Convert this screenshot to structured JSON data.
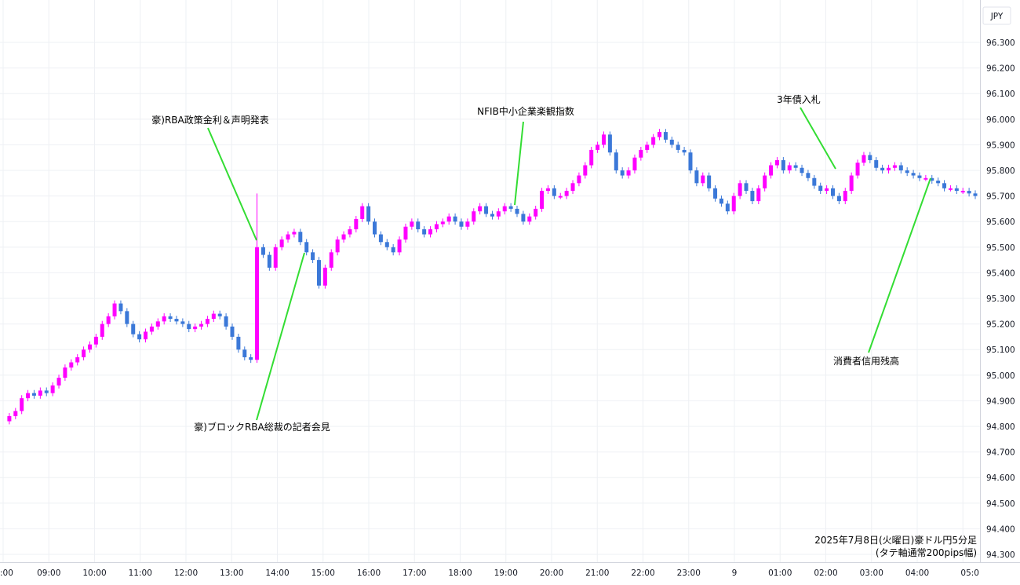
{
  "currency_label": "JPY",
  "chart_data": {
    "type": "candlestick",
    "caption_line1": "2025年7月8日(火曜日)豪ドル円5分足",
    "caption_line2": "(タテ軸通常200pips幅)",
    "y_ticks": [
      "96.300",
      "96.200",
      "96.100",
      "96.000",
      "95.900",
      "95.800",
      "95.700",
      "95.600",
      "95.500",
      "95.400",
      "95.300",
      "95.200",
      "95.100",
      "95.000",
      "94.900",
      "94.800",
      "94.700",
      "94.600",
      "94.500",
      "94.400",
      "94.300"
    ],
    "x_ticks": [
      ":00",
      "09:00",
      "10:00",
      "11:00",
      "12:00",
      "13:00",
      "14:00",
      "15:00",
      "16:00",
      "17:00",
      "18:00",
      "19:00",
      "20:00",
      "21:00",
      "22:00",
      "23:00",
      "9",
      "01:00",
      "02:00",
      "03:00",
      "04:00",
      "05:0"
    ],
    "ylim": [
      94.28,
      96.36
    ],
    "up_color": "#ff00ff",
    "down_color": "#3b78d8",
    "annotation_line_color": "#33dd33",
    "annotations": [
      {
        "text": "豪)RBA政策金利＆声明発表"
      },
      {
        "text": "豪)ブロックRBA総裁の記者会見"
      },
      {
        "text": "NFIB中小企業楽観指数"
      },
      {
        "text": "3年債入札"
      },
      {
        "text": "消費者信用残高"
      }
    ],
    "price_path": [
      94.82,
      94.84,
      94.86,
      94.91,
      94.93,
      94.92,
      94.94,
      94.93,
      94.96,
      94.99,
      95.03,
      95.05,
      95.07,
      95.1,
      95.12,
      95.15,
      95.2,
      95.23,
      95.28,
      95.25,
      95.2,
      95.16,
      95.14,
      95.17,
      95.19,
      95.21,
      95.23,
      95.22,
      95.21,
      95.2,
      95.18,
      95.19,
      95.2,
      95.22,
      95.24,
      95.23,
      95.19,
      95.15,
      95.1,
      95.07,
      95.06,
      95.5,
      95.47,
      95.42,
      95.5,
      95.53,
      95.55,
      95.56,
      95.52,
      95.48,
      95.45,
      95.35,
      95.42,
      95.48,
      95.53,
      95.55,
      95.57,
      95.61,
      95.66,
      95.6,
      95.55,
      95.52,
      95.5,
      95.48,
      95.53,
      95.58,
      95.6,
      95.57,
      95.55,
      95.57,
      95.59,
      95.6,
      95.62,
      95.6,
      95.58,
      95.6,
      95.64,
      95.66,
      95.63,
      95.62,
      95.64,
      95.66,
      95.65,
      95.63,
      95.6,
      95.62,
      95.65,
      95.72,
      95.73,
      95.7,
      95.7,
      95.72,
      95.75,
      95.78,
      95.82,
      95.88,
      95.9,
      95.94,
      95.87,
      95.8,
      95.78,
      95.8,
      95.85,
      95.88,
      95.9,
      95.93,
      95.95,
      95.92,
      95.9,
      95.88,
      95.87,
      95.8,
      95.75,
      95.78,
      95.73,
      95.69,
      95.67,
      95.64,
      95.7,
      95.75,
      95.72,
      95.68,
      95.73,
      95.78,
      95.82,
      95.84,
      95.8,
      95.82,
      95.81,
      95.79,
      95.77,
      95.74,
      95.72,
      95.73,
      95.7,
      95.68,
      95.72,
      95.78,
      95.83,
      95.86,
      95.84,
      95.81,
      95.8,
      95.81,
      95.82,
      95.8,
      95.79,
      95.78,
      95.77,
      95.77,
      95.76,
      95.75,
      95.73,
      95.73,
      95.72,
      95.72,
      95.71,
      95.7
    ]
  }
}
